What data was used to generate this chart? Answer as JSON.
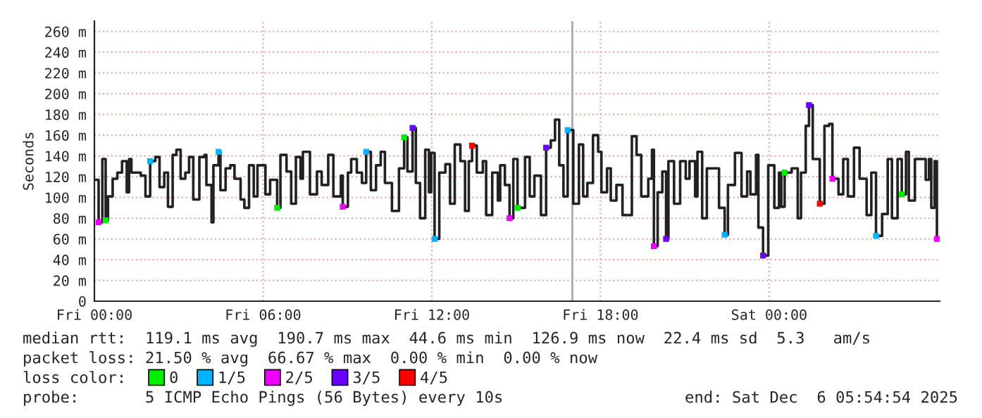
{
  "chart_data": {
    "type": "step",
    "ylabel": "Seconds",
    "legend_title": "loss color:",
    "legend": "bottom",
    "grid": true,
    "line_style": "solid",
    "xlim": [
      "2025-12-05T00:00",
      "2025-12-06T06:04"
    ],
    "ylim": [
      0,
      270
    ],
    "xticks": [
      {
        "value": "2025-12-05T00:00",
        "label": "Fri 00:00"
      },
      {
        "value": "2025-12-05T06:00",
        "label": "Fri 06:00"
      },
      {
        "value": "2025-12-05T12:00",
        "label": "Fri 12:00"
      },
      {
        "value": "2025-12-05T18:00",
        "label": "Fri 18:00"
      },
      {
        "value": "2025-12-06T00:00",
        "label": "Sat 00:00"
      }
    ],
    "yticks": [
      0,
      {
        "value": 20,
        "label": "20 m"
      },
      {
        "value": 40,
        "label": "40 m"
      },
      {
        "value": 60,
        "label": "60 m"
      },
      {
        "value": 80,
        "label": "80 m"
      },
      {
        "value": 100,
        "label": "100 m"
      },
      {
        "value": 120,
        "label": "120 m"
      },
      {
        "value": 140,
        "label": "140 m"
      },
      {
        "value": 160,
        "label": "160 m"
      },
      {
        "value": 180,
        "label": "180 m"
      },
      {
        "value": 200,
        "label": "200 m"
      },
      {
        "value": 220,
        "label": "220 m"
      },
      {
        "value": 240,
        "label": "240 m"
      },
      {
        "value": 260,
        "label": "260 m"
      }
    ],
    "ref_lines": [
      {
        "axis": "x",
        "value": "2025-12-05T17:00",
        "color": "#aaaaaa"
      }
    ],
    "series": [
      {
        "color": "#222222",
        "x": [
          "2025-12-05T00:00",
          "2025-12-05T00:09",
          "2025-12-05T00:17",
          "2025-12-05T00:24",
          "2025-12-05T00:29",
          "2025-12-05T00:39",
          "2025-12-05T00:49",
          "2025-12-05T00:59",
          "2025-12-05T01:09",
          "2025-12-05T01:14",
          "2025-12-05T01:19",
          "2025-12-05T01:39",
          "2025-12-05T01:49",
          "2025-12-05T01:59",
          "2025-12-05T02:10",
          "2025-12-05T02:19",
          "2025-12-05T02:29",
          "2025-12-05T02:37",
          "2025-12-05T02:47",
          "2025-12-05T02:55",
          "2025-12-05T03:04",
          "2025-12-05T03:14",
          "2025-12-05T03:22",
          "2025-12-05T03:31",
          "2025-12-05T03:44",
          "2025-12-05T03:55",
          "2025-12-05T03:59",
          "2025-12-05T04:10",
          "2025-12-05T04:14",
          "2025-12-05T04:25",
          "2025-12-05T04:29",
          "2025-12-05T04:40",
          "2025-12-05T04:50",
          "2025-12-05T04:59",
          "2025-12-05T05:12",
          "2025-12-05T05:20",
          "2025-12-05T05:30",
          "2025-12-05T05:40",
          "2025-12-05T05:48",
          "2025-12-05T06:05",
          "2025-12-05T06:15",
          "2025-12-05T06:30",
          "2025-12-05T06:37",
          "2025-12-05T06:50",
          "2025-12-05T07:00",
          "2025-12-05T07:10",
          "2025-12-05T07:20",
          "2025-12-05T07:25",
          "2025-12-05T07:40",
          "2025-12-05T07:55",
          "2025-12-05T08:05",
          "2025-12-05T08:19",
          "2025-12-05T08:30",
          "2025-12-05T08:46",
          "2025-12-05T08:50",
          "2025-12-05T09:01",
          "2025-12-05T09:08",
          "2025-12-05T09:20",
          "2025-12-05T09:31",
          "2025-12-05T09:40",
          "2025-12-05T09:50",
          "2025-12-05T10:01",
          "2025-12-05T10:11",
          "2025-12-05T10:20",
          "2025-12-05T10:35",
          "2025-12-05T10:50",
          "2025-12-05T11:01",
          "2025-12-05T11:08",
          "2025-12-05T11:19",
          "2025-12-05T11:26",
          "2025-12-05T11:35",
          "2025-12-05T11:46",
          "2025-12-05T11:54",
          "2025-12-05T11:59",
          "2025-12-05T12:06",
          "2025-12-05T12:16",
          "2025-12-05T12:29",
          "2025-12-05T12:39",
          "2025-12-05T12:49",
          "2025-12-05T13:01",
          "2025-12-05T13:11",
          "2025-12-05T13:19",
          "2025-12-05T13:26",
          "2025-12-05T13:36",
          "2025-12-05T13:49",
          "2025-12-05T13:56",
          "2025-12-05T14:09",
          "2025-12-05T14:21",
          "2025-12-05T14:26",
          "2025-12-05T14:36",
          "2025-12-05T14:46",
          "2025-12-05T14:54",
          "2025-12-05T15:03",
          "2025-12-05T15:19",
          "2025-12-05T15:29",
          "2025-12-05T15:39",
          "2025-12-05T15:53",
          "2025-12-05T16:04",
          "2025-12-05T16:14",
          "2025-12-05T16:23",
          "2025-12-05T16:32",
          "2025-12-05T16:41",
          "2025-12-05T16:50",
          "2025-12-05T17:02",
          "2025-12-05T17:14",
          "2025-12-05T17:23",
          "2025-12-05T17:32",
          "2025-12-05T17:44",
          "2025-12-05T17:55",
          "2025-12-05T18:02",
          "2025-12-05T18:14",
          "2025-12-05T18:22",
          "2025-12-05T18:34",
          "2025-12-05T18:47",
          "2025-12-05T19:07",
          "2025-12-05T19:17",
          "2025-12-05T19:27",
          "2025-12-05T19:42",
          "2025-12-05T19:50",
          "2025-12-05T19:54",
          "2025-12-05T20:02",
          "2025-12-05T20:12",
          "2025-12-05T20:20",
          "2025-12-05T20:25",
          "2025-12-05T20:37",
          "2025-12-05T20:50",
          "2025-12-05T21:02",
          "2025-12-05T21:10",
          "2025-12-05T21:22",
          "2025-12-05T21:27",
          "2025-12-05T21:37",
          "2025-12-05T21:47",
          "2025-12-05T22:02",
          "2025-12-05T22:13",
          "2025-12-05T22:25",
          "2025-12-05T22:32",
          "2025-12-05T22:47",
          "2025-12-05T23:01",
          "2025-12-05T23:13",
          "2025-12-05T23:20",
          "2025-12-05T23:32",
          "2025-12-05T23:37",
          "2025-12-05T23:47",
          "2025-12-05T23:58",
          "2025-12-06T00:11",
          "2025-12-06T00:21",
          "2025-12-06T00:26",
          "2025-12-06T00:33",
          "2025-12-06T00:48",
          "2025-12-06T01:01",
          "2025-12-06T01:08",
          "2025-12-06T01:18",
          "2025-12-06T01:25",
          "2025-12-06T01:33",
          "2025-12-06T01:48",
          "2025-12-06T01:58",
          "2025-12-06T02:08",
          "2025-12-06T02:15",
          "2025-12-06T02:28",
          "2025-12-06T02:38",
          "2025-12-06T02:48",
          "2025-12-06T03:01",
          "2025-12-06T03:13",
          "2025-12-06T03:28",
          "2025-12-06T03:38",
          "2025-12-06T03:48",
          "2025-12-06T04:01",
          "2025-12-06T04:13",
          "2025-12-06T04:22",
          "2025-12-06T04:34",
          "2025-12-06T04:43",
          "2025-12-06T04:52",
          "2025-12-06T04:58",
          "2025-12-06T05:11",
          "2025-12-06T05:25",
          "2025-12-06T05:34",
          "2025-12-06T05:41",
          "2025-12-06T05:46",
          "2025-12-06T05:53",
          "2025-12-06T05:58"
        ],
        "values": [
          117,
          76,
          137,
          78,
          101,
          118,
          124,
          135,
          105,
          137,
          124,
          121,
          101,
          135,
          139,
          110,
          124,
          91,
          141,
          146,
          118,
          124,
          139,
          98,
          139,
          141,
          112,
          76,
          131,
          144,
          107,
          128,
          131,
          118,
          98,
          90,
          131,
          101,
          131,
          103,
          117,
          90,
          141,
          125,
          94,
          139,
          118,
          144,
          103,
          125,
          112,
          141,
          101,
          121,
          91,
          124,
          137,
          124,
          114,
          144,
          107,
          131,
          144,
          114,
          87,
          128,
          158,
          125,
          167,
          114,
          80,
          146,
          105,
          143,
          60,
          124,
          132,
          94,
          151,
          135,
          87,
          135,
          150,
          124,
          135,
          83,
          124,
          97,
          131,
          112,
          80,
          137,
          90,
          139,
          101,
          121,
          83,
          148,
          155,
          175,
          131,
          101,
          165,
          94,
          151,
          101,
          114,
          160,
          144,
          105,
          128,
          97,
          112,
          83,
          159,
          141,
          101,
          118,
          146,
          53,
          105,
          125,
          60,
          135,
          94,
          135,
          118,
          135,
          101,
          144,
          80,
          128,
          128,
          90,
          64,
          112,
          143,
          101,
          125,
          103,
          141,
          71,
          44,
          131,
          90,
          124,
          91,
          124,
          128,
          80,
          124,
          169,
          189,
          137,
          94,
          169,
          171,
          118,
          103,
          137,
          101,
          148,
          118,
          83,
          124,
          63,
          84,
          137,
          80,
          137,
          103,
          144,
          97,
          137,
          137,
          117,
          137,
          90,
          135,
          60
        ]
      },
      {
        "type": "scatter",
        "marker": "square",
        "name": "0",
        "color": "#00ee00",
        "x": [
          "2025-12-05T00:24",
          "2025-12-05T06:30",
          "2025-12-05T11:01",
          "2025-12-05T15:03",
          "2025-12-06T00:33",
          "2025-12-06T04:43"
        ],
        "values": [
          78,
          90,
          158,
          90,
          124,
          103
        ]
      },
      {
        "type": "scatter",
        "marker": "square",
        "name": "1/5",
        "color": "#00b4ff",
        "x": [
          "2025-12-05T01:59",
          "2025-12-05T04:25",
          "2025-12-05T09:40",
          "2025-12-05T12:06",
          "2025-12-05T16:50",
          "2025-12-05T22:25",
          "2025-12-06T03:48"
        ],
        "values": [
          135,
          144,
          144,
          60,
          165,
          64,
          63
        ]
      },
      {
        "type": "scatter",
        "marker": "square",
        "name": "2/5",
        "color": "#ee00ff",
        "x": [
          "2025-12-05T00:09",
          "2025-12-05T08:50",
          "2025-12-05T14:46",
          "2025-12-05T19:54",
          "2025-12-06T02:15",
          "2025-12-06T05:58"
        ],
        "values": [
          76,
          91,
          80,
          53,
          118,
          60
        ]
      },
      {
        "type": "scatter",
        "marker": "square",
        "name": "3/5",
        "color": "#6a00ff",
        "x": [
          "2025-12-05T11:19",
          "2025-12-05T16:04",
          "2025-12-05T20:20",
          "2025-12-05T23:47",
          "2025-12-06T01:25"
        ],
        "values": [
          167,
          148,
          60,
          44,
          189
        ]
      },
      {
        "type": "scatter",
        "marker": "square",
        "name": "4/5",
        "color": "#ff0000",
        "x": [
          "2025-12-05T13:26",
          "2025-12-06T01:48"
        ],
        "values": [
          150,
          94
        ]
      }
    ],
    "annotations": [
      "median rtt:  119.1 ms avg  190.7 ms max  44.6 ms min  126.9 ms now  22.4 ms sd  5.3   am/s",
      "packet loss: 21.50 % avg  66.67 % max  0.00 % min  0.00 % now",
      "probe:       5 ICMP Echo Pings (56 Bytes) every 10s",
      "end: Sat Dec  6 05:54:54 2025"
    ]
  }
}
